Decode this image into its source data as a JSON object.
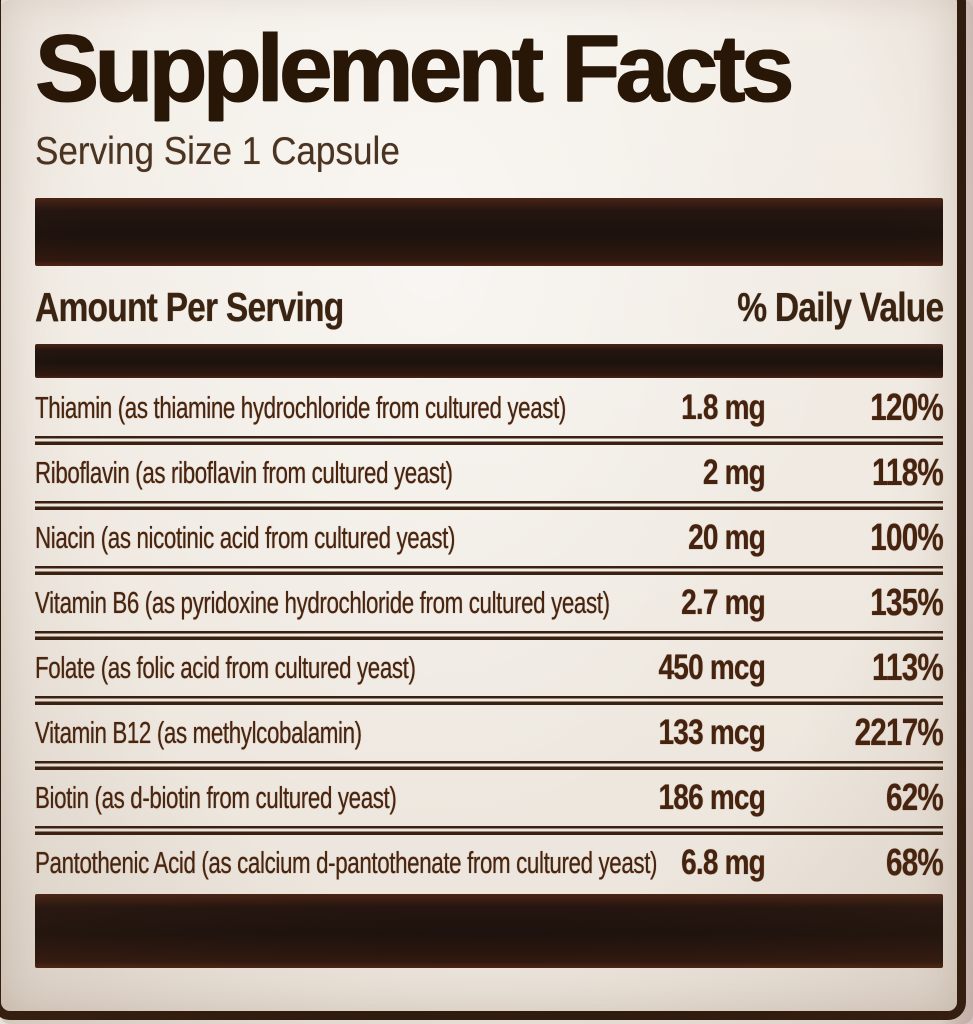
{
  "label": {
    "title": "Supplement Facts",
    "serving_size": "Serving Size 1 Capsule",
    "header": {
      "amount": "Amount Per Serving",
      "daily_value": "% Daily Value"
    },
    "rows": [
      {
        "name": "Thiamin (as thiamine hydrochloride from cultured yeast)",
        "amount": "1.8 mg",
        "dv": "120%"
      },
      {
        "name": "Riboflavin (as riboflavin from cultured yeast)",
        "amount": "2 mg",
        "dv": "118%"
      },
      {
        "name": "Niacin (as nicotinic acid from cultured yeast)",
        "amount": "20 mg",
        "dv": "100%"
      },
      {
        "name": "Vitamin B6 (as pyridoxine hydrochloride from cultured yeast)",
        "amount": "2.7 mg",
        "dv": "135%"
      },
      {
        "name": "Folate (as folic acid from cultured yeast)",
        "amount": "450 mcg",
        "dv": "113%"
      },
      {
        "name": "Vitamin B12 (as methylcobalamin)",
        "amount": "133 mcg",
        "dv": "2217%"
      },
      {
        "name": "Biotin (as d-biotin from cultured yeast)",
        "amount": "186 mcg",
        "dv": "62%"
      },
      {
        "name": "Pantothenic Acid (as calcium d-pantothenate from cultured yeast)",
        "amount": "6.8 mg",
        "dv": "68%"
      }
    ],
    "colors": {
      "label_background": "#efe9e1",
      "ink": "#3c2412",
      "bar": "#241510",
      "border": "#2e1b0e",
      "photo_background": "#d3c2bd"
    }
  }
}
